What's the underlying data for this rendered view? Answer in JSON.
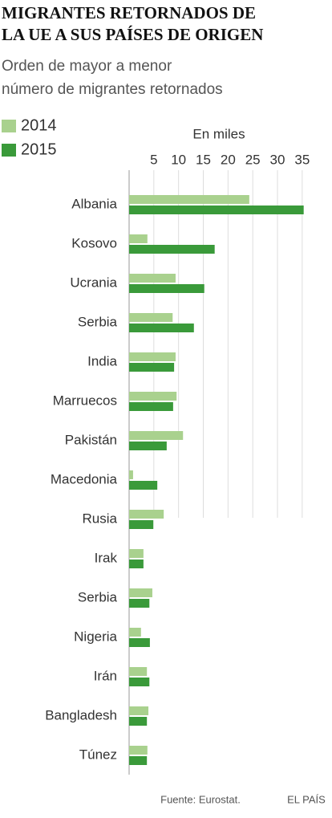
{
  "chart_data": {
    "type": "bar",
    "orientation": "horizontal",
    "title_lines": [
      "MIGRANTES RETORNADOS DE",
      "LA UE A SUS PAÍSES DE ORIGEN"
    ],
    "subtitle_lines": [
      "Orden de mayor a menor",
      "número de migrantes retornados"
    ],
    "x_label": "En miles",
    "categories": [
      "Albania",
      "Kosovo",
      "Ucrania",
      "Serbia",
      "India",
      "Marruecos",
      "Pakistán",
      "Macedonia",
      "Rusia",
      "Irak",
      "Serbia",
      "Nigeria",
      "Irán",
      "Bangladesh",
      "Túnez"
    ],
    "series": [
      {
        "name": "2014",
        "color": "#a9d18e",
        "values": [
          24.3,
          3.7,
          9.4,
          8.8,
          9.4,
          9.6,
          10.9,
          0.8,
          7.0,
          2.9,
          4.7,
          2.4,
          3.6,
          3.9,
          3.7
        ]
      },
      {
        "name": "2015",
        "color": "#3a9a3a",
        "values": [
          35.3,
          17.3,
          15.2,
          13.1,
          9.1,
          8.9,
          7.6,
          5.7,
          4.9,
          2.9,
          4.1,
          4.2,
          4.1,
          3.6,
          3.6
        ]
      }
    ],
    "xlim": [
      0,
      36
    ],
    "xticks": [
      5,
      10,
      15,
      20,
      25,
      30,
      35
    ],
    "grid": true,
    "source": "Fuente: Eurostat.",
    "brand": "EL PAÍS"
  }
}
